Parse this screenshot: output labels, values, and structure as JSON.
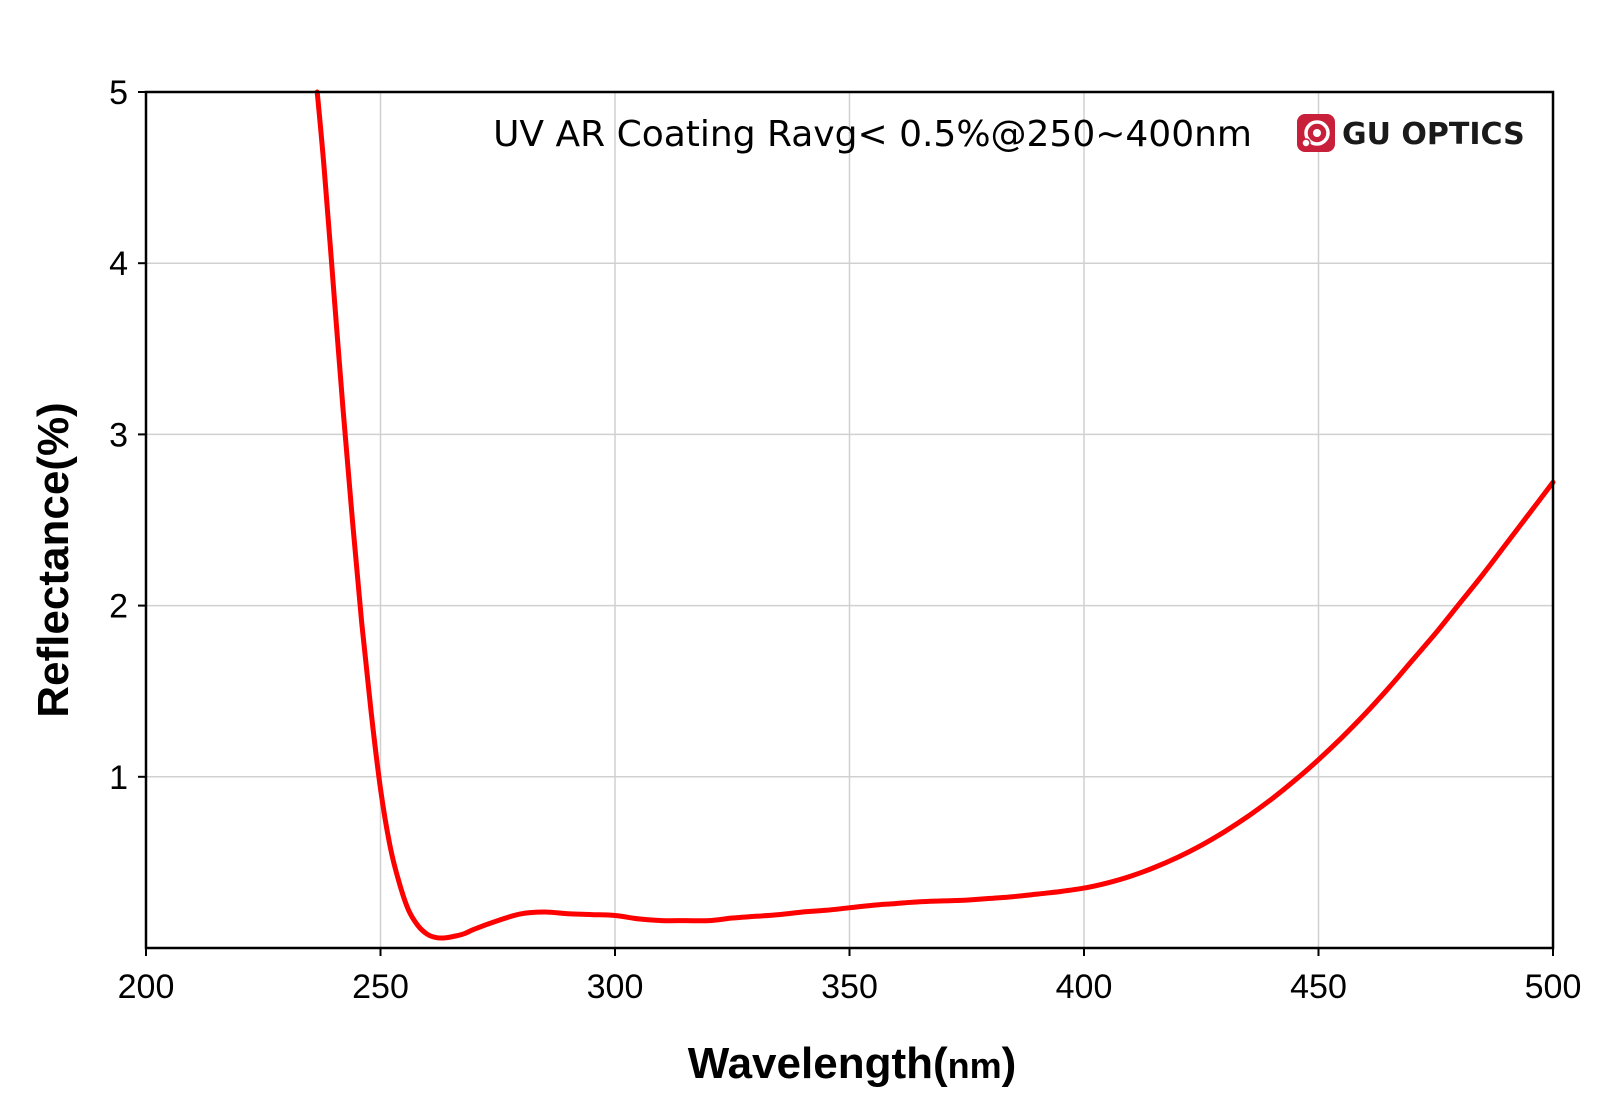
{
  "chart_data": {
    "type": "line",
    "title": "",
    "annotation": "UV AR Coating Ravg< 0.5%@250~400nm",
    "xlabel_main": "Wavelength(",
    "xlabel_unit": "nm",
    "xlabel_close": ")",
    "ylabel": "Reflectance(%)",
    "xlim": [
      200,
      500
    ],
    "ylim": [
      0,
      5
    ],
    "x_ticks": [
      200,
      250,
      300,
      350,
      400,
      450,
      500
    ],
    "y_ticks": [
      1,
      2,
      3,
      4,
      5
    ],
    "grid": true,
    "legend": "none",
    "series": [
      {
        "color": "#ff0000",
        "x": [
          236.5,
          238,
          240,
          242,
          244,
          246,
          248,
          250,
          252,
          254,
          256,
          258,
          260,
          262,
          264,
          266,
          268,
          270,
          275,
          280,
          285,
          290,
          295,
          300,
          305,
          310,
          315,
          320,
          325,
          330,
          335,
          340,
          345,
          350,
          355,
          360,
          365,
          370,
          375,
          380,
          385,
          390,
          395,
          400,
          405,
          410,
          415,
          420,
          425,
          430,
          435,
          440,
          445,
          450,
          455,
          460,
          465,
          470,
          475,
          480,
          485,
          490,
          495,
          500
        ],
        "y": [
          5.0,
          4.55,
          3.85,
          3.15,
          2.5,
          1.9,
          1.38,
          0.93,
          0.6,
          0.38,
          0.22,
          0.13,
          0.08,
          0.06,
          0.06,
          0.07,
          0.085,
          0.11,
          0.16,
          0.2,
          0.21,
          0.2,
          0.195,
          0.19,
          0.17,
          0.16,
          0.16,
          0.16,
          0.175,
          0.185,
          0.195,
          0.21,
          0.22,
          0.235,
          0.25,
          0.26,
          0.27,
          0.275,
          0.28,
          0.29,
          0.3,
          0.315,
          0.33,
          0.35,
          0.38,
          0.42,
          0.47,
          0.53,
          0.6,
          0.68,
          0.77,
          0.87,
          0.98,
          1.1,
          1.23,
          1.37,
          1.52,
          1.68,
          1.84,
          2.01,
          2.18,
          2.36,
          2.54,
          2.72
        ]
      }
    ]
  },
  "logo": {
    "text": "GU OPTICS",
    "icon": "gu-optics-logo-icon",
    "color": "#c8203a"
  },
  "colors": {
    "axis": "#000000",
    "grid": "#d0d0d0",
    "series": "#ff0000"
  }
}
